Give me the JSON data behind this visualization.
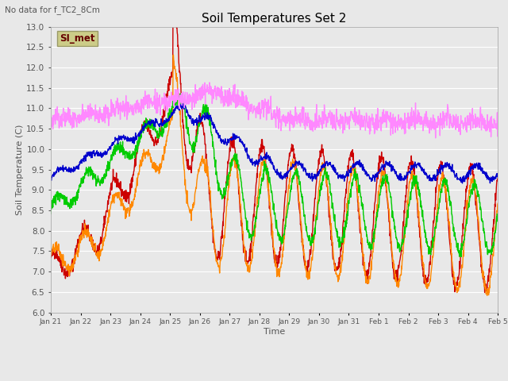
{
  "title": "Soil Temperatures Set 2",
  "subtitle": "No data for f_TC2_8Cm",
  "xlabel": "Time",
  "ylabel": "Soil Temperature (C)",
  "ylim": [
    6.0,
    13.0
  ],
  "yticks": [
    6.0,
    6.5,
    7.0,
    7.5,
    8.0,
    8.5,
    9.0,
    9.5,
    10.0,
    10.5,
    11.0,
    11.5,
    12.0,
    12.5,
    13.0
  ],
  "colors": {
    "TC2_2Cm": "#cc0000",
    "TC2_4Cm": "#ff8800",
    "TC2_16Cm": "#00cc00",
    "TC2_32Cm": "#0000cc",
    "TC2_50Cm": "#ff88ff"
  },
  "fig_bg_color": "#e8e8e8",
  "plot_bg_color": "#e8e8e8",
  "annotation_box_color": "#cccc88",
  "annotation_text": "SI_met",
  "annotation_text_color": "#660000",
  "xtick_labels": [
    "Jan 21",
    "Jan 22",
    "Jan 23",
    "Jan 24",
    "Jan 25",
    "Jan 26",
    "Jan 27",
    "Jan 28",
    "Jan 29",
    "Jan 30",
    "Jan 31",
    "Feb 1",
    "Feb 2",
    "Feb 3",
    "Feb 4",
    "Feb 5"
  ]
}
